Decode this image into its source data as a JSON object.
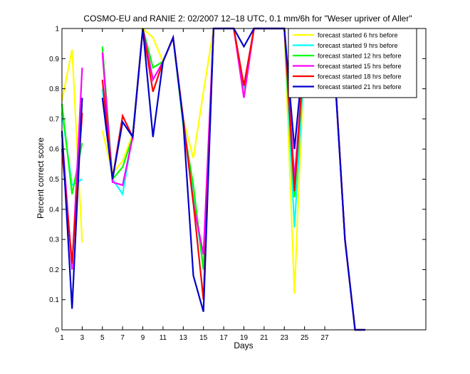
{
  "chart_data": {
    "type": "line",
    "title": "COSMO-EU and RANIE 2: 02/2007 12–18 UTC, 0.1 mm/6h for \"Weser upriver of Aller\"",
    "xlabel": "Days",
    "ylabel": "Percent correct score",
    "xlim": [
      1,
      37
    ],
    "ylim": [
      0,
      1
    ],
    "xticks": [
      1,
      3,
      5,
      7,
      9,
      11,
      13,
      15,
      17,
      19,
      21,
      23,
      25,
      27
    ],
    "yticks": [
      0,
      0.1,
      0.2,
      0.3,
      0.4,
      0.5,
      0.6,
      0.7,
      0.8,
      0.9,
      1
    ],
    "xtick_labels": [
      "1",
      "3",
      "5",
      "7",
      "9",
      "11",
      "13",
      "15",
      "17",
      "19",
      "21",
      "23",
      "25",
      "27"
    ],
    "ytick_labels": [
      "0",
      "0.1",
      "0.2",
      "0.3",
      "0.4",
      "0.5",
      "0.6",
      "0.7",
      "0.8",
      "0.9",
      "1"
    ],
    "grid": false,
    "legend_position": "top-right",
    "series": [
      {
        "name": "forecast started 6 hrs before",
        "color": "#ffff00",
        "points": [
          [
            1,
            0.76
          ],
          [
            2,
            0.93
          ],
          [
            3,
            0.29
          ],
          [
            null,
            null
          ],
          [
            5,
            0.66
          ],
          [
            6,
            0.52
          ],
          [
            7,
            0.56
          ],
          [
            8,
            0.65
          ],
          [
            9,
            1.0
          ],
          [
            10,
            0.97
          ],
          [
            11,
            0.89
          ],
          [
            12,
            0.97
          ],
          [
            13,
            0.7
          ],
          [
            14,
            0.57
          ],
          [
            15,
            0.79
          ],
          [
            16,
            1.0
          ],
          [
            17,
            1.0
          ],
          [
            18,
            1.0
          ],
          [
            19,
            0.79
          ],
          [
            20,
            1.0
          ],
          [
            21,
            1.0
          ],
          [
            22,
            1.0
          ],
          [
            23,
            1.0
          ],
          [
            24,
            0.12
          ],
          [
            25,
            0.93
          ],
          [
            26,
            0.82
          ],
          [
            27,
            0.89
          ],
          [
            28,
            0.85
          ],
          [
            29,
            0.3
          ],
          [
            30,
            0.0
          ],
          [
            31,
            0.0
          ]
        ]
      },
      {
        "name": "forecast started 9 hrs before",
        "color": "#00ffff",
        "points": [
          [
            1,
            0.72
          ],
          [
            2,
            0.48
          ],
          [
            3,
            0.5
          ],
          [
            null,
            null
          ],
          [
            5,
            0.8
          ],
          [
            6,
            0.5
          ],
          [
            7,
            0.45
          ],
          [
            8,
            0.65
          ],
          [
            9,
            1.0
          ],
          [
            10,
            0.87
          ],
          [
            11,
            0.89
          ],
          [
            12,
            0.97
          ],
          [
            13,
            0.7
          ],
          [
            14,
            0.45
          ],
          [
            15,
            0.2
          ],
          [
            16,
            1.0
          ],
          [
            17,
            1.0
          ],
          [
            18,
            1.0
          ],
          [
            19,
            0.8
          ],
          [
            20,
            1.0
          ],
          [
            21,
            1.0
          ],
          [
            22,
            1.0
          ],
          [
            23,
            1.0
          ],
          [
            24,
            0.34
          ],
          [
            25,
            0.9
          ],
          [
            26,
            0.82
          ],
          [
            27,
            0.89
          ],
          [
            28,
            0.85
          ],
          [
            29,
            0.3
          ],
          [
            30,
            0.0
          ],
          [
            31,
            0.0
          ]
        ]
      },
      {
        "name": "forecast started 12 hrs before",
        "color": "#00ff00",
        "points": [
          [
            1,
            0.75
          ],
          [
            2,
            0.45
          ],
          [
            3,
            0.62
          ],
          [
            null,
            null
          ],
          [
            5,
            0.94
          ],
          [
            6,
            0.5
          ],
          [
            7,
            0.54
          ],
          [
            8,
            0.64
          ],
          [
            9,
            1.0
          ],
          [
            10,
            0.87
          ],
          [
            11,
            0.89
          ],
          [
            12,
            0.97
          ],
          [
            13,
            0.68
          ],
          [
            14,
            0.48
          ],
          [
            15,
            0.2
          ],
          [
            16,
            1.0
          ],
          [
            17,
            1.0
          ],
          [
            18,
            1.0
          ],
          [
            19,
            0.81
          ],
          [
            20,
            1.0
          ],
          [
            21,
            1.0
          ],
          [
            22,
            1.0
          ],
          [
            23,
            1.0
          ],
          [
            24,
            0.44
          ],
          [
            25,
            0.92
          ],
          [
            26,
            0.82
          ],
          [
            27,
            0.89
          ],
          [
            28,
            0.85
          ],
          [
            29,
            0.3
          ],
          [
            30,
            0.0
          ],
          [
            31,
            0.0
          ]
        ]
      },
      {
        "name": "forecast started 15 hrs before",
        "color": "#ff00ff",
        "points": [
          [
            1,
            0.65
          ],
          [
            2,
            0.2
          ],
          [
            3,
            0.87
          ],
          [
            null,
            null
          ],
          [
            5,
            0.92
          ],
          [
            6,
            0.49
          ],
          [
            7,
            0.48
          ],
          [
            8,
            0.64
          ],
          [
            9,
            1.0
          ],
          [
            10,
            0.83
          ],
          [
            11,
            0.89
          ],
          [
            12,
            0.97
          ],
          [
            13,
            0.7
          ],
          [
            14,
            0.42
          ],
          [
            15,
            0.25
          ],
          [
            16,
            1.0
          ],
          [
            17,
            1.0
          ],
          [
            18,
            1.0
          ],
          [
            19,
            0.77
          ],
          [
            20,
            1.0
          ],
          [
            21,
            1.0
          ],
          [
            22,
            1.0
          ],
          [
            23,
            1.0
          ],
          [
            24,
            0.5
          ],
          [
            25,
            0.92
          ],
          [
            26,
            0.82
          ],
          [
            27,
            0.89
          ],
          [
            28,
            0.85
          ],
          [
            29,
            0.3
          ],
          [
            30,
            0.0
          ],
          [
            31,
            0.0
          ]
        ]
      },
      {
        "name": "forecast started 18 hrs before",
        "color": "#ff0000",
        "points": [
          [
            1,
            0.6
          ],
          [
            2,
            0.22
          ],
          [
            3,
            0.72
          ],
          [
            null,
            null
          ],
          [
            5,
            0.83
          ],
          [
            6,
            0.5
          ],
          [
            7,
            0.71
          ],
          [
            8,
            0.64
          ],
          [
            9,
            1.0
          ],
          [
            10,
            0.79
          ],
          [
            11,
            0.89
          ],
          [
            12,
            0.97
          ],
          [
            13,
            0.7
          ],
          [
            14,
            0.42
          ],
          [
            15,
            0.1
          ],
          [
            16,
            1.0
          ],
          [
            17,
            1.0
          ],
          [
            18,
            1.0
          ],
          [
            19,
            0.81
          ],
          [
            20,
            1.0
          ],
          [
            21,
            1.0
          ],
          [
            22,
            1.0
          ],
          [
            23,
            1.0
          ],
          [
            24,
            0.46
          ],
          [
            25,
            0.94
          ],
          [
            26,
            0.83
          ],
          [
            27,
            0.89
          ],
          [
            28,
            0.85
          ],
          [
            29,
            0.3
          ],
          [
            30,
            0.0
          ],
          [
            31,
            0.0
          ]
        ]
      },
      {
        "name": "forecast started 21 hrs before",
        "color": "#0000cc",
        "points": [
          [
            1,
            0.66
          ],
          [
            2,
            0.07
          ],
          [
            3,
            0.77
          ],
          [
            null,
            null
          ],
          [
            5,
            0.77
          ],
          [
            6,
            0.5
          ],
          [
            7,
            0.69
          ],
          [
            8,
            0.64
          ],
          [
            9,
            1.0
          ],
          [
            10,
            0.64
          ],
          [
            11,
            0.89
          ],
          [
            12,
            0.97
          ],
          [
            13,
            0.69
          ],
          [
            14,
            0.18
          ],
          [
            15,
            0.06
          ],
          [
            16,
            1.0
          ],
          [
            17,
            1.0
          ],
          [
            18,
            1.0
          ],
          [
            19,
            0.94
          ],
          [
            20,
            1.0
          ],
          [
            21,
            1.0
          ],
          [
            22,
            1.0
          ],
          [
            23,
            1.0
          ],
          [
            24,
            0.6
          ],
          [
            25,
            0.95
          ],
          [
            26,
            0.79
          ],
          [
            27,
            0.89
          ],
          [
            28,
            0.84
          ],
          [
            29,
            0.3
          ],
          [
            30,
            0.0
          ],
          [
            31,
            0.0
          ]
        ]
      }
    ]
  }
}
